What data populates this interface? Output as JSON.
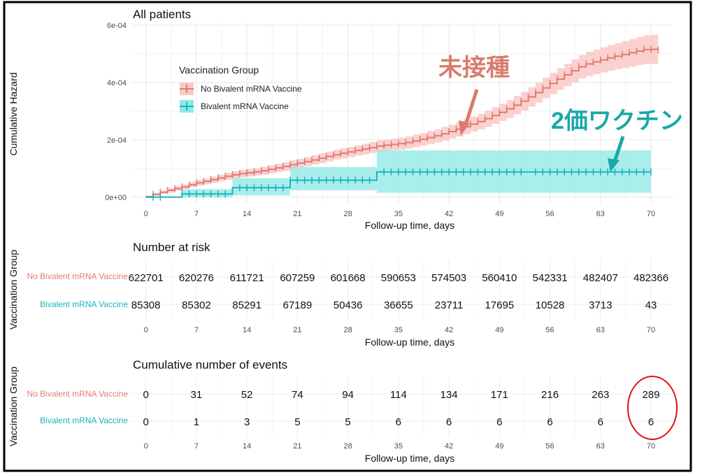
{
  "colors": {
    "no_bivalent": "#e07b72",
    "no_bivalent_band": "#f9c9c6",
    "bivalent": "#19b4b8",
    "bivalent_band": "#8de8e6",
    "annot_red": "#d97b6e",
    "annot_teal": "#1aa8a8",
    "circle": "#e01010"
  },
  "chart_data": [
    {
      "type": "line",
      "title": "All patients",
      "xlabel": "Follow-up time, days",
      "ylabel": "Cumulative Hazard",
      "x_ticks": [
        0,
        7,
        14,
        21,
        28,
        35,
        42,
        49,
        56,
        63,
        70
      ],
      "y_ticks": [
        0,
        0.0002,
        0.0004,
        0.0006
      ],
      "y_tick_labels": [
        "0e+00",
        "2e-04",
        "4e-04",
        "6e-04"
      ],
      "xlim": [
        -2,
        73
      ],
      "ylim": [
        -2e-05,
        0.00061
      ],
      "grid": true,
      "legend": {
        "title": "Vaccination Group",
        "placement": "top-left",
        "entries": [
          "No Bivalent mRNA Vaccine",
          "Bivalent mRNA Vaccine"
        ]
      },
      "series": [
        {
          "name": "No Bivalent mRNA Vaccine",
          "step": true,
          "x": [
            0,
            1,
            2,
            3,
            4,
            5,
            6,
            7,
            8,
            9,
            10,
            11,
            12,
            13,
            14,
            15,
            16,
            17,
            18,
            19,
            20,
            21,
            22,
            23,
            24,
            25,
            26,
            27,
            28,
            29,
            30,
            31,
            32,
            33,
            34,
            35,
            36,
            37,
            38,
            39,
            40,
            41,
            42,
            43,
            44,
            45,
            46,
            47,
            48,
            49,
            50,
            51,
            52,
            53,
            54,
            55,
            56,
            57,
            58,
            59,
            60,
            61,
            62,
            63,
            64,
            65,
            66,
            67,
            68,
            69,
            70,
            71
          ],
          "y": [
            2e-06,
            1e-05,
            1.7e-05,
            2.4e-05,
            3e-05,
            3.6e-05,
            4.3e-05,
            5e-05,
            5.5e-05,
            6.1e-05,
            6.7e-05,
            7.3e-05,
            7.8e-05,
            8.2e-05,
            8.5e-05,
            8.8e-05,
            9.2e-05,
            9.7e-05,
            0.000102,
            0.000107,
            0.000113,
            0.000119,
            0.000124,
            0.00013,
            0.000136,
            0.000142,
            0.000148,
            0.000153,
            0.000158,
            0.000163,
            0.000168,
            0.000173,
            0.000178,
            0.000181,
            0.000184,
            0.000187,
            0.000191,
            0.000196,
            0.000202,
            0.000208,
            0.000214,
            0.000221,
            0.000229,
            0.000237,
            0.000246,
            0.000255,
            0.000264,
            0.000274,
            0.000285,
            0.000296,
            0.000308,
            0.000321,
            0.000335,
            0.00035,
            0.000365,
            0.000381,
            0.000397,
            0.000412,
            0.000427,
            0.000441,
            0.000455,
            0.000465,
            0.000472,
            0.000479,
            0.000486,
            0.000492,
            0.000498,
            0.000504,
            0.00051,
            0.000515,
            0.000516,
            0.000514
          ],
          "ci_half_width": [
            3e-06,
            5e-06,
            6e-06,
            7e-06,
            8e-06,
            8e-06,
            9e-06,
            1e-05,
            1e-05,
            1.1e-05,
            1.1e-05,
            1.2e-05,
            1.2e-05,
            1.3e-05,
            1.3e-05,
            1.3e-05,
            1.4e-05,
            1.4e-05,
            1.4e-05,
            1.5e-05,
            1.5e-05,
            1.5e-05,
            1.6e-05,
            1.6e-05,
            1.7e-05,
            1.7e-05,
            1.7e-05,
            1.8e-05,
            1.8e-05,
            1.8e-05,
            1.9e-05,
            1.9e-05,
            2e-05,
            2e-05,
            2e-05,
            2.1e-05,
            2.1e-05,
            2.2e-05,
            2.2e-05,
            2.3e-05,
            2.3e-05,
            2.4e-05,
            2.4e-05,
            2.5e-05,
            2.6e-05,
            2.6e-05,
            2.7e-05,
            2.8e-05,
            2.9e-05,
            3e-05,
            3.1e-05,
            3.2e-05,
            3.3e-05,
            3.4e-05,
            3.5e-05,
            3.6e-05,
            3.7e-05,
            3.8e-05,
            3.9e-05,
            4e-05,
            4.1e-05,
            4.2e-05,
            4.3e-05,
            4.4e-05,
            4.5e-05,
            4.6e-05,
            4.7e-05,
            4.8e-05,
            4.9e-05,
            5e-05,
            5.1e-05,
            5.1e-05
          ]
        },
        {
          "name": "Bivalent mRNA Vaccine",
          "step": true,
          "x": [
            0,
            5,
            12,
            20,
            32,
            70
          ],
          "y": [
            0,
            1.1e-05,
            3.3e-05,
            5.9e-05,
            8.8e-05,
            8.8e-05
          ],
          "ci_low": [
            0,
            0,
            6e-06,
            2.4e-05,
            1.5e-05,
            1.5e-05
          ],
          "ci_high": [
            0,
            2.8e-05,
            6.6e-05,
            0.000105,
            0.000163,
            0.000163
          ],
          "censor_x": [
            1,
            2,
            5,
            6,
            7,
            8,
            9,
            10,
            11,
            13,
            14,
            15,
            16,
            17,
            18,
            19,
            20,
            21,
            22,
            23,
            24,
            25,
            26,
            27,
            28,
            29,
            30,
            31,
            33,
            34,
            35,
            36,
            37,
            38,
            39,
            40,
            41,
            42,
            43,
            44,
            45,
            46,
            47,
            48,
            49,
            50,
            51,
            52,
            54,
            55,
            56,
            57,
            58,
            59,
            60,
            61,
            62,
            63,
            64,
            65,
            66,
            67,
            68,
            69,
            70
          ]
        }
      ],
      "annotations": [
        {
          "text": "未接種",
          "color": "annot_red"
        },
        {
          "text": "2価ワクチン",
          "color": "annot_teal"
        }
      ]
    },
    {
      "type": "table",
      "title": "Number at risk",
      "xlabel": "Follow-up time, days",
      "ylabel": "Vaccination Group",
      "x": [
        0,
        7,
        14,
        21,
        28,
        35,
        42,
        49,
        56,
        63,
        70
      ],
      "rows": [
        {
          "name": "No Bivalent mRNA Vaccine",
          "values": [
            622701,
            620276,
            611721,
            607259,
            601668,
            590653,
            574503,
            560410,
            542331,
            482407,
            482366
          ]
        },
        {
          "name": "Bivalent mRNA Vaccine",
          "values": [
            85308,
            85302,
            85291,
            67189,
            50436,
            36655,
            23711,
            17695,
            10528,
            3713,
            43
          ]
        }
      ]
    },
    {
      "type": "table",
      "title": "Cumulative number of events",
      "xlabel": "Follow-up time, days",
      "ylabel": "Vaccination Group",
      "x": [
        0,
        7,
        14,
        21,
        28,
        35,
        42,
        49,
        56,
        63,
        70
      ],
      "rows": [
        {
          "name": "No Bivalent mRNA Vaccine",
          "values": [
            0,
            31,
            52,
            74,
            94,
            114,
            134,
            171,
            216,
            263,
            289
          ]
        },
        {
          "name": "Bivalent mRNA Vaccine",
          "values": [
            0,
            1,
            3,
            5,
            5,
            6,
            6,
            6,
            6,
            6,
            6
          ]
        }
      ],
      "highlight": {
        "column": 70,
        "shape": "ellipse",
        "color": "circle"
      }
    }
  ]
}
